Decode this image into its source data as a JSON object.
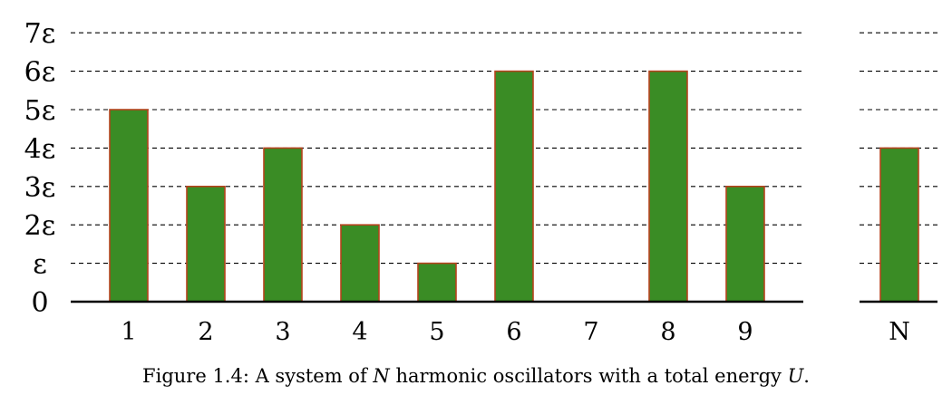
{
  "chart_data": {
    "type": "bar",
    "categories": [
      "1",
      "2",
      "3",
      "4",
      "5",
      "6",
      "7",
      "8",
      "9",
      "N"
    ],
    "values": [
      5,
      3,
      4,
      2,
      1,
      6,
      0,
      6,
      3,
      4
    ],
    "yticks": [
      "0",
      "ε",
      "2ε",
      "3ε",
      "4ε",
      "5ε",
      "6ε",
      "7ε"
    ],
    "ylim": [
      0,
      7
    ],
    "grid": true,
    "bar_color": "#3a8c25",
    "bar_edge_color": "#b5431d",
    "axis_break_after": "9"
  },
  "caption": {
    "prefix": "Figure 1.4:  A system of ",
    "n": "N",
    "middle": " harmonic oscillators with a total energy ",
    "u": "U",
    "suffix": "."
  }
}
